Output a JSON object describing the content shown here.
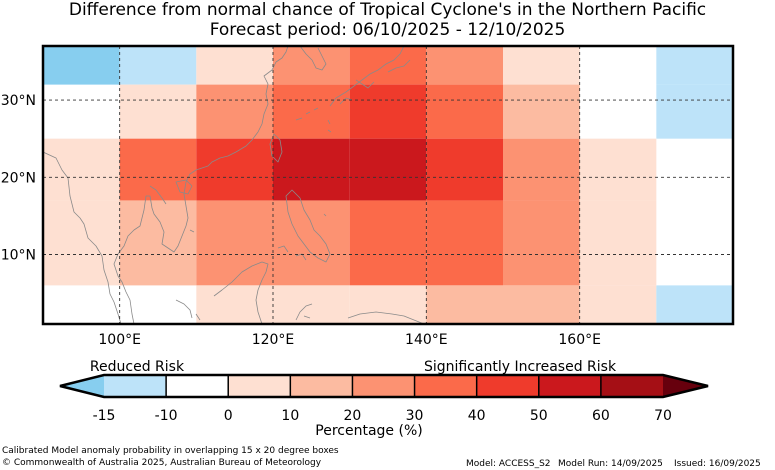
{
  "title": {
    "line1": "Difference from normal chance of Tropical Cyclone's in the Northern Pacific",
    "line2": "Forecast period: 06/10/2025 - 12/10/2025"
  },
  "colors": {
    "c_-15": "#87ceef",
    "c_-10": "#bde3f9",
    "c_0": "#ffffff",
    "c_10": "#fee0d2",
    "c_20": "#fcbba1",
    "c_30": "#fc9272",
    "c_40": "#fb6a4a",
    "c_50": "#ef3b2c",
    "c_60": "#cb181d",
    "c_70": "#a50f15",
    "c_over": "#67000d"
  },
  "map": {
    "lon_range": [
      90,
      180
    ],
    "lat_range": [
      1,
      37
    ],
    "x_ticks": [
      {
        "lon": 100,
        "label": "100°E"
      },
      {
        "lon": 120,
        "label": "120°E"
      },
      {
        "lon": 140,
        "label": "140°E"
      },
      {
        "lon": 160,
        "label": "160°E"
      }
    ],
    "y_ticks": [
      {
        "lat": 30,
        "label": "30°N"
      },
      {
        "lat": 20,
        "label": "20°N"
      },
      {
        "lat": 10,
        "label": "10°N"
      }
    ],
    "cells": [
      {
        "lon": [
          90,
          100
        ],
        "lat": [
          32,
          37
        ],
        "level": "-15"
      },
      {
        "lon": [
          100,
          110
        ],
        "lat": [
          32,
          37
        ],
        "level": "-10"
      },
      {
        "lon": [
          110,
          120
        ],
        "lat": [
          32,
          37
        ],
        "level": "10"
      },
      {
        "lon": [
          120,
          130
        ],
        "lat": [
          32,
          37
        ],
        "level": "30"
      },
      {
        "lon": [
          130,
          140
        ],
        "lat": [
          32,
          37
        ],
        "level": "40"
      },
      {
        "lon": [
          140,
          150
        ],
        "lat": [
          32,
          37
        ],
        "level": "30"
      },
      {
        "lon": [
          150,
          160
        ],
        "lat": [
          32,
          37
        ],
        "level": "10"
      },
      {
        "lon": [
          170,
          180
        ],
        "lat": [
          32,
          37
        ],
        "level": "-10"
      },
      {
        "lon": [
          100,
          110
        ],
        "lat": [
          25,
          32
        ],
        "level": "10"
      },
      {
        "lon": [
          110,
          120
        ],
        "lat": [
          25,
          32
        ],
        "level": "30"
      },
      {
        "lon": [
          120,
          130
        ],
        "lat": [
          25,
          32
        ],
        "level": "40"
      },
      {
        "lon": [
          130,
          140
        ],
        "lat": [
          25,
          32
        ],
        "level": "50"
      },
      {
        "lon": [
          140,
          150
        ],
        "lat": [
          25,
          32
        ],
        "level": "40"
      },
      {
        "lon": [
          150,
          160
        ],
        "lat": [
          25,
          32
        ],
        "level": "20"
      },
      {
        "lon": [
          170,
          180
        ],
        "lat": [
          25,
          32
        ],
        "level": "-10"
      },
      {
        "lon": [
          90,
          100
        ],
        "lat": [
          17,
          25
        ],
        "level": "10"
      },
      {
        "lon": [
          100,
          110
        ],
        "lat": [
          17,
          25
        ],
        "level": "40"
      },
      {
        "lon": [
          110,
          120
        ],
        "lat": [
          17,
          25
        ],
        "level": "50"
      },
      {
        "lon": [
          120,
          130
        ],
        "lat": [
          17,
          25
        ],
        "level": "60"
      },
      {
        "lon": [
          130,
          140
        ],
        "lat": [
          17,
          25
        ],
        "level": "60"
      },
      {
        "lon": [
          140,
          150
        ],
        "lat": [
          17,
          25
        ],
        "level": "50"
      },
      {
        "lon": [
          150,
          160
        ],
        "lat": [
          17,
          25
        ],
        "level": "30"
      },
      {
        "lon": [
          160,
          170
        ],
        "lat": [
          17,
          25
        ],
        "level": "10"
      },
      {
        "lon": [
          90,
          100
        ],
        "lat": [
          10,
          17
        ],
        "level": "10"
      },
      {
        "lon": [
          100,
          110
        ],
        "lat": [
          10,
          17
        ],
        "level": "20"
      },
      {
        "lon": [
          110,
          120
        ],
        "lat": [
          10,
          17
        ],
        "level": "30"
      },
      {
        "lon": [
          120,
          130
        ],
        "lat": [
          10,
          17
        ],
        "level": "30"
      },
      {
        "lon": [
          130,
          140
        ],
        "lat": [
          10,
          17
        ],
        "level": "40"
      },
      {
        "lon": [
          140,
          150
        ],
        "lat": [
          10,
          17
        ],
        "level": "40"
      },
      {
        "lon": [
          150,
          160
        ],
        "lat": [
          10,
          17
        ],
        "level": "30"
      },
      {
        "lon": [
          160,
          170
        ],
        "lat": [
          10,
          17
        ],
        "level": "10"
      },
      {
        "lon": [
          90,
          100
        ],
        "lat": [
          6,
          10
        ],
        "level": "10"
      },
      {
        "lon": [
          100,
          110
        ],
        "lat": [
          6,
          10
        ],
        "level": "20"
      },
      {
        "lon": [
          110,
          120
        ],
        "lat": [
          6,
          10
        ],
        "level": "30"
      },
      {
        "lon": [
          120,
          130
        ],
        "lat": [
          6,
          10
        ],
        "level": "30"
      },
      {
        "lon": [
          130,
          140
        ],
        "lat": [
          6,
          10
        ],
        "level": "40"
      },
      {
        "lon": [
          140,
          150
        ],
        "lat": [
          6,
          10
        ],
        "level": "40"
      },
      {
        "lon": [
          150,
          160
        ],
        "lat": [
          6,
          10
        ],
        "level": "30"
      },
      {
        "lon": [
          160,
          170
        ],
        "lat": [
          6,
          10
        ],
        "level": "10"
      },
      {
        "lon": [
          110,
          120
        ],
        "lat": [
          1,
          6
        ],
        "level": "10"
      },
      {
        "lon": [
          120,
          130
        ],
        "lat": [
          1,
          6
        ],
        "level": "10"
      },
      {
        "lon": [
          130,
          140
        ],
        "lat": [
          1,
          6
        ],
        "level": "10"
      },
      {
        "lon": [
          140,
          150
        ],
        "lat": [
          1,
          6
        ],
        "level": "20"
      },
      {
        "lon": [
          150,
          160
        ],
        "lat": [
          1,
          6
        ],
        "level": "20"
      },
      {
        "lon": [
          160,
          170
        ],
        "lat": [
          1,
          6
        ],
        "level": "10"
      },
      {
        "lon": [
          170,
          180
        ],
        "lat": [
          1,
          6
        ],
        "level": "-10"
      }
    ]
  },
  "colorbar": {
    "left_label": "Reduced Risk",
    "right_label": "Significantly Increased Risk",
    "tick_labels": [
      "-15",
      "-10",
      "0",
      "10",
      "20",
      "30",
      "40",
      "50",
      "60",
      "70"
    ],
    "under_level": "-15",
    "band_levels": [
      "-10",
      "0",
      "10",
      "20",
      "30",
      "40",
      "50",
      "60",
      "70"
    ],
    "over_level": "over",
    "axis_label": "Percentage (%)"
  },
  "footer": {
    "method": "Calibrated Model anomaly probability in overlapping 15 x 20 degree boxes",
    "copyright": "© Commonwealth of Australia 2025, Australian Bureau of Meteorology",
    "model": "Model: ACCESS_S2",
    "model_run": "Model Run: 14/09/2025",
    "issued": "Issued: 16/09/2025"
  }
}
